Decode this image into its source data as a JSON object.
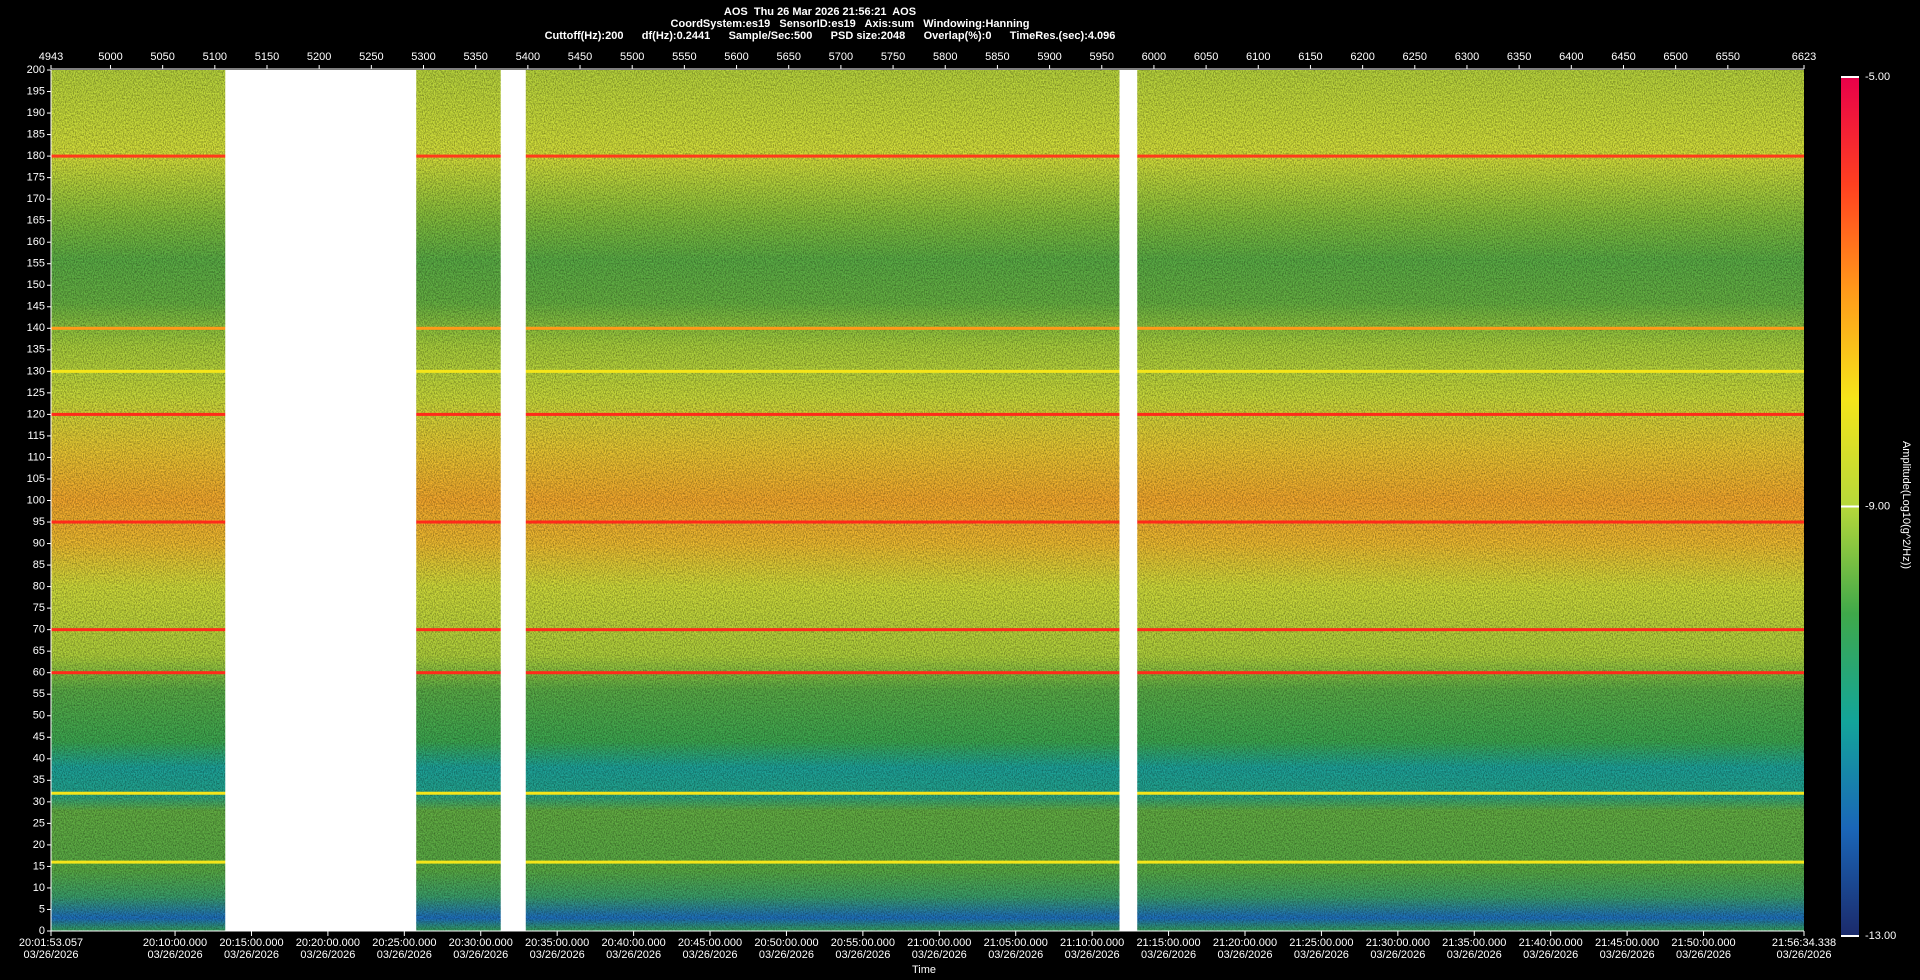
{
  "chart_data": {
    "type": "spectrogram",
    "header": [
      "AOS  Thu 26 Mar 2026 21:56:21  AOS",
      "CoordSystem:es19   SensorID:es19   Axis:sum   Windowing:Hanning",
      "Cuttoff(Hz):200      df(Hz):0.2441      Sample/Sec:500      PSD size:2048      Overlap(%):0      TimeRes.(sec):4.096"
    ],
    "x_label": "Time",
    "colorbar_label": "Amplitude(Log10(g^2/Hz))",
    "xlim": [
      4943,
      6623
    ],
    "xticks": [
      4943,
      5000,
      5050,
      5100,
      5150,
      5200,
      5250,
      5300,
      5350,
      5400,
      5450,
      5500,
      5550,
      5600,
      5650,
      5700,
      5750,
      5800,
      5850,
      5900,
      5950,
      6000,
      6050,
      6100,
      6150,
      6200,
      6250,
      6300,
      6350,
      6400,
      6450,
      6500,
      6550,
      6623
    ],
    "time_lim": [
      "20:01:53.057",
      "21:56:34.338"
    ],
    "time_ticks": [
      {
        "time": "20:01:53.057",
        "date": "03/26/2026"
      },
      {
        "time": "20:10:00.000",
        "date": "03/26/2026"
      },
      {
        "time": "20:15:00.000",
        "date": "03/26/2026"
      },
      {
        "time": "20:20:00.000",
        "date": "03/26/2026"
      },
      {
        "time": "20:25:00.000",
        "date": "03/26/2026"
      },
      {
        "time": "20:30:00.000",
        "date": "03/26/2026"
      },
      {
        "time": "20:35:00.000",
        "date": "03/26/2026"
      },
      {
        "time": "20:40:00.000",
        "date": "03/26/2026"
      },
      {
        "time": "20:45:00.000",
        "date": "03/26/2026"
      },
      {
        "time": "20:50:00.000",
        "date": "03/26/2026"
      },
      {
        "time": "20:55:00.000",
        "date": "03/26/2026"
      },
      {
        "time": "21:00:00.000",
        "date": "03/26/2026"
      },
      {
        "time": "21:05:00.000",
        "date": "03/26/2026"
      },
      {
        "time": "21:10:00.000",
        "date": "03/26/2026"
      },
      {
        "time": "21:15:00.000",
        "date": "03/26/2026"
      },
      {
        "time": "21:20:00.000",
        "date": "03/26/2026"
      },
      {
        "time": "21:25:00.000",
        "date": "03/26/2026"
      },
      {
        "time": "21:30:00.000",
        "date": "03/26/2026"
      },
      {
        "time": "21:35:00.000",
        "date": "03/26/2026"
      },
      {
        "time": "21:40:00.000",
        "date": "03/26/2026"
      },
      {
        "time": "21:45:00.000",
        "date": "03/26/2026"
      },
      {
        "time": "21:50:00.000",
        "date": "03/26/2026"
      },
      {
        "time": "21:56:34.338",
        "date": "03/26/2026"
      }
    ],
    "ylim": [
      0,
      200
    ],
    "yticks": [
      0,
      5,
      10,
      15,
      20,
      25,
      30,
      35,
      40,
      45,
      50,
      55,
      60,
      65,
      70,
      75,
      80,
      85,
      90,
      95,
      100,
      105,
      110,
      115,
      120,
      125,
      130,
      135,
      140,
      145,
      150,
      155,
      160,
      165,
      170,
      175,
      180,
      185,
      190,
      195,
      200
    ],
    "gaps": [
      [
        5110,
        5293
      ],
      [
        5374,
        5398
      ],
      [
        5967,
        5984
      ]
    ],
    "lines": [
      {
        "y": 180,
        "color": "#ff3a1a"
      },
      {
        "y": 140,
        "color": "#ff9a1a"
      },
      {
        "y": 130,
        "color": "#f5e51a"
      },
      {
        "y": 120,
        "color": "#ff2a1a"
      },
      {
        "y": 95,
        "color": "#ff2a1a"
      },
      {
        "y": 70,
        "color": "#ff2a1a"
      },
      {
        "y": 60,
        "color": "#ff2a1a"
      },
      {
        "y": 32,
        "color": "#f5e51a"
      },
      {
        "y": 16,
        "color": "#f5e51a"
      }
    ],
    "clim": [
      -13,
      -5
    ],
    "cticks": [
      {
        "value": -5,
        "label": "-5.00"
      },
      {
        "value": -9,
        "label": "-9.00"
      },
      {
        "value": -13,
        "label": "-13.00"
      }
    ],
    "colormap": [
      "#e8004a",
      "#ff4020",
      "#ff9a1a",
      "#f5e51a",
      "#b6d83a",
      "#3fa84a",
      "#13a59a",
      "#1a66b8",
      "#1b2a6b"
    ]
  }
}
